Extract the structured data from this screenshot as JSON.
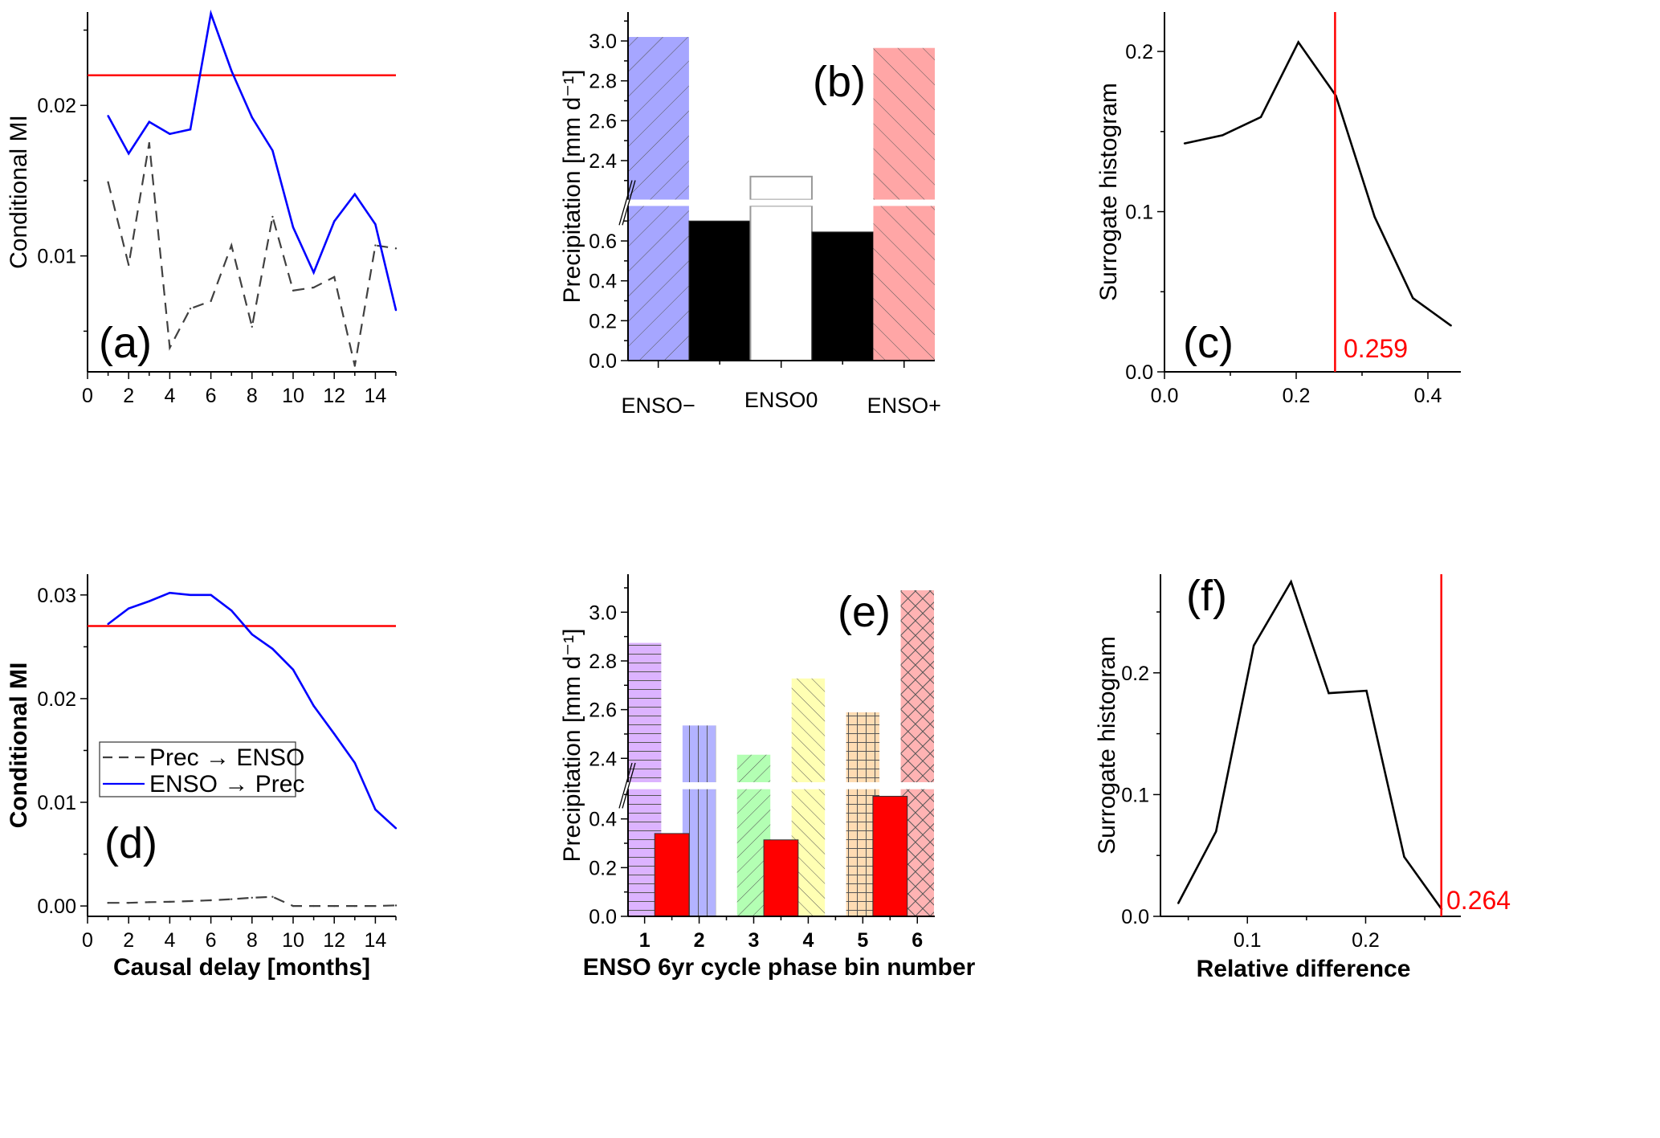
{
  "colors": {
    "threshold": "#ff0000",
    "enso_to_prec": "#0000ff",
    "prec_to_enso": "#404040",
    "histogram": "#000000"
  },
  "chart_data": [
    {
      "type": "line",
      "panel_label": "(a)",
      "ylabel": "Conditional MI",
      "xlabel": "",
      "xlim": [
        0,
        15
      ],
      "ylim": [
        0.0023,
        0.0262
      ],
      "xticks": [
        0,
        2,
        4,
        6,
        8,
        10,
        12,
        14
      ],
      "xtick_labels": [
        "0",
        "2",
        "4",
        "6",
        "8",
        "10",
        "12",
        "14"
      ],
      "yticks": [
        0.01,
        0.02
      ],
      "ytick_labels": [
        "0.01",
        "0.02"
      ],
      "x": [
        1,
        2,
        3,
        4,
        5,
        6,
        7,
        8,
        9,
        10,
        11,
        12,
        13,
        14,
        15
      ],
      "series": [
        {
          "style": "dashed",
          "color": "#404040",
          "values": [
            0.0149,
            0.0094,
            0.0175,
            0.0039,
            0.0065,
            0.007,
            0.0107,
            0.0053,
            0.0126,
            0.0077,
            0.0079,
            0.0086,
            0.0027,
            0.0107,
            0.0105
          ]
        },
        {
          "style": "solid",
          "color": "#0000ff",
          "values": [
            0.0193,
            0.0168,
            0.0189,
            0.0181,
            0.0184,
            0.0261,
            0.0223,
            0.0192,
            0.017,
            0.0119,
            0.0089,
            0.0123,
            0.0141,
            0.0121,
            0.0064
          ]
        }
      ],
      "hline": {
        "value": 0.022,
        "color": "#ff0000"
      },
      "grid": false
    },
    {
      "type": "bar",
      "panel_label": "(b)",
      "ylabel": "Precipitation [mm d⁻¹]",
      "xlabel": "",
      "categories": [
        "ENSO−",
        "ENSO0",
        "ENSO+"
      ],
      "xlim": [
        0.754,
        3.25
      ],
      "y_break": {
        "lower": [
          0,
          0.776
        ],
        "upper": [
          2.204,
          3.145
        ]
      },
      "yticks": [
        0.0,
        0.2,
        0.4,
        0.6,
        2.4,
        2.6,
        2.8,
        3.0
      ],
      "ytick_labels": [
        "0.0",
        "0.2",
        "0.4",
        "0.6",
        "2.4",
        "2.6",
        "2.8",
        "3.0"
      ],
      "bars": [
        {
          "x": 1,
          "value": 3.02,
          "color": "#a6a6ff",
          "hatch": "diag-up"
        },
        {
          "x": 1.5,
          "value": 0.7,
          "color": "#000000",
          "hatch": "none"
        },
        {
          "x": 2,
          "value": 2.32,
          "color": "#ffffff",
          "hatch": "none",
          "edge": "#999999"
        },
        {
          "x": 2.5,
          "value": 0.645,
          "color": "#000000",
          "hatch": "none"
        },
        {
          "x": 3,
          "value": 2.965,
          "color": "#ffa6a6",
          "hatch": "diag-down"
        }
      ],
      "grid": false
    },
    {
      "type": "line",
      "panel_label": "(c)",
      "ylabel": "Surrogate histogram",
      "xlabel": "",
      "xlim": [
        0,
        0.45
      ],
      "ylim": [
        0,
        0.2246
      ],
      "xticks": [
        0.0,
        0.2,
        0.4
      ],
      "xtick_labels": [
        "0.0",
        "0.2",
        "0.4"
      ],
      "yticks": [
        0.0,
        0.1,
        0.2
      ],
      "ytick_labels": [
        "0.0",
        "0.1",
        "0.2"
      ],
      "x": [
        0.0305,
        0.0882,
        0.1463,
        0.2033,
        0.2602,
        0.3191,
        0.3772,
        0.435
      ],
      "series": [
        {
          "style": "solid",
          "color": "#000000",
          "values": [
            0.1426,
            0.1477,
            0.159,
            0.2058,
            0.1724,
            0.0967,
            0.046,
            0.0289
          ]
        }
      ],
      "vline": {
        "value": 0.259,
        "label": "0.259",
        "color": "#ff0000"
      },
      "grid": false
    },
    {
      "type": "line",
      "panel_label": "(d)",
      "ylabel": "Conditional  MI",
      "xlabel": "Causal delay  [months]",
      "xlim": [
        0,
        15
      ],
      "ylim": [
        -0.001,
        0.032
      ],
      "xticks": [
        0,
        2,
        4,
        6,
        8,
        10,
        12,
        14
      ],
      "xtick_labels": [
        "0",
        "2",
        "4",
        "6",
        "8",
        "10",
        "12",
        "14"
      ],
      "yticks": [
        0.0,
        0.01,
        0.02,
        0.03
      ],
      "ytick_labels": [
        "0.00",
        "0.01",
        "0.02",
        "0.03"
      ],
      "x": [
        1,
        2,
        3,
        4,
        5,
        6,
        7,
        8,
        9,
        10,
        11,
        12,
        13,
        14,
        15
      ],
      "series": [
        {
          "name": "Prec → ENSO",
          "style": "dashed",
          "color": "#404040",
          "values": [
            0.0003,
            0.0003,
            0.00037,
            0.0004,
            0.00047,
            0.00055,
            0.00065,
            0.0008,
            0.00088,
            0.0,
            0.0,
            0.0,
            0.0,
            0.0,
            5e-05
          ]
        },
        {
          "name": "ENSO → Prec",
          "style": "solid",
          "color": "#0000ff",
          "values": [
            0.0272,
            0.0287,
            0.0294,
            0.0302,
            0.03,
            0.03,
            0.0285,
            0.0262,
            0.0248,
            0.0228,
            0.0193,
            0.0166,
            0.0138,
            0.0093,
            0.0075
          ]
        }
      ],
      "hline": {
        "value": 0.027,
        "color": "#ff0000"
      },
      "legend": {
        "placement": "center-left",
        "entries": [
          "Prec → ENSO",
          "ENSO → Prec"
        ]
      },
      "grid": false
    },
    {
      "type": "bar",
      "panel_label": "(e)",
      "ylabel": "Precipitation  [mm d⁻¹]",
      "xlabel": "ENSO 6yr cycle phase bin number",
      "categories": [
        "1",
        "2",
        "3",
        "4",
        "5",
        "6"
      ],
      "xlim": [
        0.696,
        6.32
      ],
      "y_break": {
        "lower": [
          0,
          0.522
        ],
        "upper": [
          2.302,
          3.156
        ]
      },
      "yticks": [
        0.0,
        0.2,
        0.4,
        2.4,
        2.6,
        2.8,
        3.0
      ],
      "ytick_labels": [
        "0.0",
        "0.2",
        "0.4",
        "2.4",
        "2.6",
        "2.8",
        "3.0"
      ],
      "bars": [
        {
          "x": 1,
          "value": 2.874,
          "color": "#dcb3ff",
          "hatch": "horizontal"
        },
        {
          "x": 2,
          "value": 2.535,
          "color": "#b3b3ff",
          "hatch": "vertical"
        },
        {
          "x": 3,
          "value": 2.415,
          "color": "#b3ffb3",
          "hatch": "diag-up"
        },
        {
          "x": 4,
          "value": 2.728,
          "color": "#ffffb3",
          "hatch": "diag-down"
        },
        {
          "x": 5,
          "value": 2.589,
          "color": "#ffdcb3",
          "hatch": "grid"
        },
        {
          "x": 6,
          "value": 3.09,
          "color": "#ffb3b3",
          "hatch": "crosshatch"
        },
        {
          "x": 1.5,
          "value": 0.34,
          "color": "#ff0000",
          "hatch": "none"
        },
        {
          "x": 3.5,
          "value": 0.314,
          "color": "#ff0000",
          "hatch": "none"
        },
        {
          "x": 5.5,
          "value": 0.493,
          "color": "#ff0000",
          "hatch": "none"
        }
      ],
      "grid": false
    },
    {
      "type": "line",
      "panel_label": "(f)",
      "ylabel": "Surrogate histogram",
      "xlabel": "Relative difference",
      "xlim": [
        0.0265,
        0.2805
      ],
      "ylim": [
        0,
        0.281
      ],
      "xticks": [
        0.1,
        0.2
      ],
      "xtick_labels": [
        "0.1",
        "0.2"
      ],
      "yticks": [
        0.0,
        0.1,
        0.2
      ],
      "ytick_labels": [
        "0.0",
        "0.1",
        "0.2"
      ],
      "x": [
        0.0416,
        0.0735,
        0.1054,
        0.1369,
        0.1688,
        0.2007,
        0.2326,
        0.2643
      ],
      "series": [
        {
          "style": "solid",
          "color": "#000000",
          "values": [
            0.0108,
            0.0697,
            0.2224,
            0.2748,
            0.1833,
            0.1853,
            0.0488,
            0.0059
          ]
        }
      ],
      "vline": {
        "value": 0.264,
        "label": "0.264",
        "color": "#ff0000"
      },
      "grid": false
    }
  ]
}
